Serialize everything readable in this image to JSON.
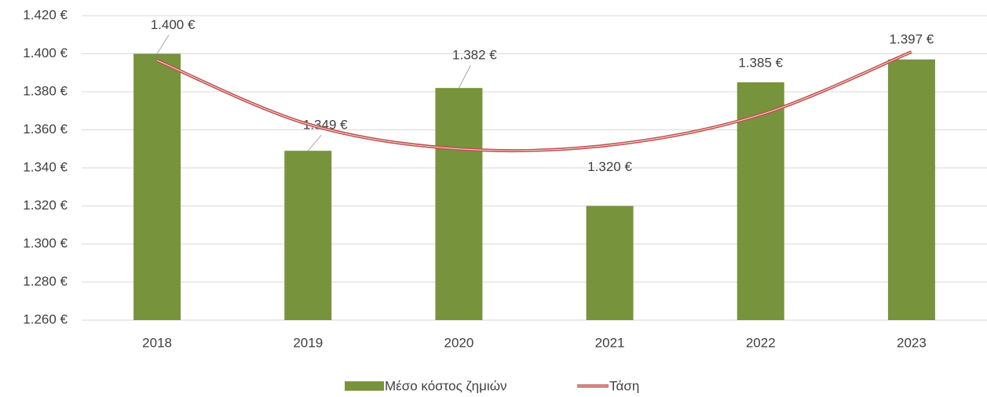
{
  "chart_data": {
    "type": "bar",
    "categories": [
      "2018",
      "2019",
      "2020",
      "2021",
      "2022",
      "2023"
    ],
    "series": [
      {
        "name": "Μέσο κόστος ζημιών",
        "color": "#77933c",
        "values": [
          1400,
          1349,
          1382,
          1320,
          1385,
          1397
        ],
        "value_labels": [
          "1.400 €",
          "1.349 €",
          "1.382 €",
          "1.320 €",
          "1.385 €",
          "1.397 €"
        ]
      },
      {
        "name": "Τάση",
        "type": "line",
        "color": "#c0504d",
        "values": [
          1396.5,
          1363,
          1350,
          1352,
          1368,
          1401
        ]
      }
    ],
    "ylim": [
      1260,
      1420
    ],
    "yticks": [
      {
        "value": 1260,
        "label": "1.260 €"
      },
      {
        "value": 1280,
        "label": "1.280 €"
      },
      {
        "value": 1300,
        "label": "1.300 €"
      },
      {
        "value": 1320,
        "label": "1.320 €"
      },
      {
        "value": 1340,
        "label": "1.340 €"
      },
      {
        "value": 1360,
        "label": "1.360 €"
      },
      {
        "value": 1380,
        "label": "1.380 €"
      },
      {
        "value": 1400,
        "label": "1.400 €"
      },
      {
        "value": 1420,
        "label": "1.420 €"
      }
    ],
    "grid": true,
    "legend": "bottom"
  }
}
